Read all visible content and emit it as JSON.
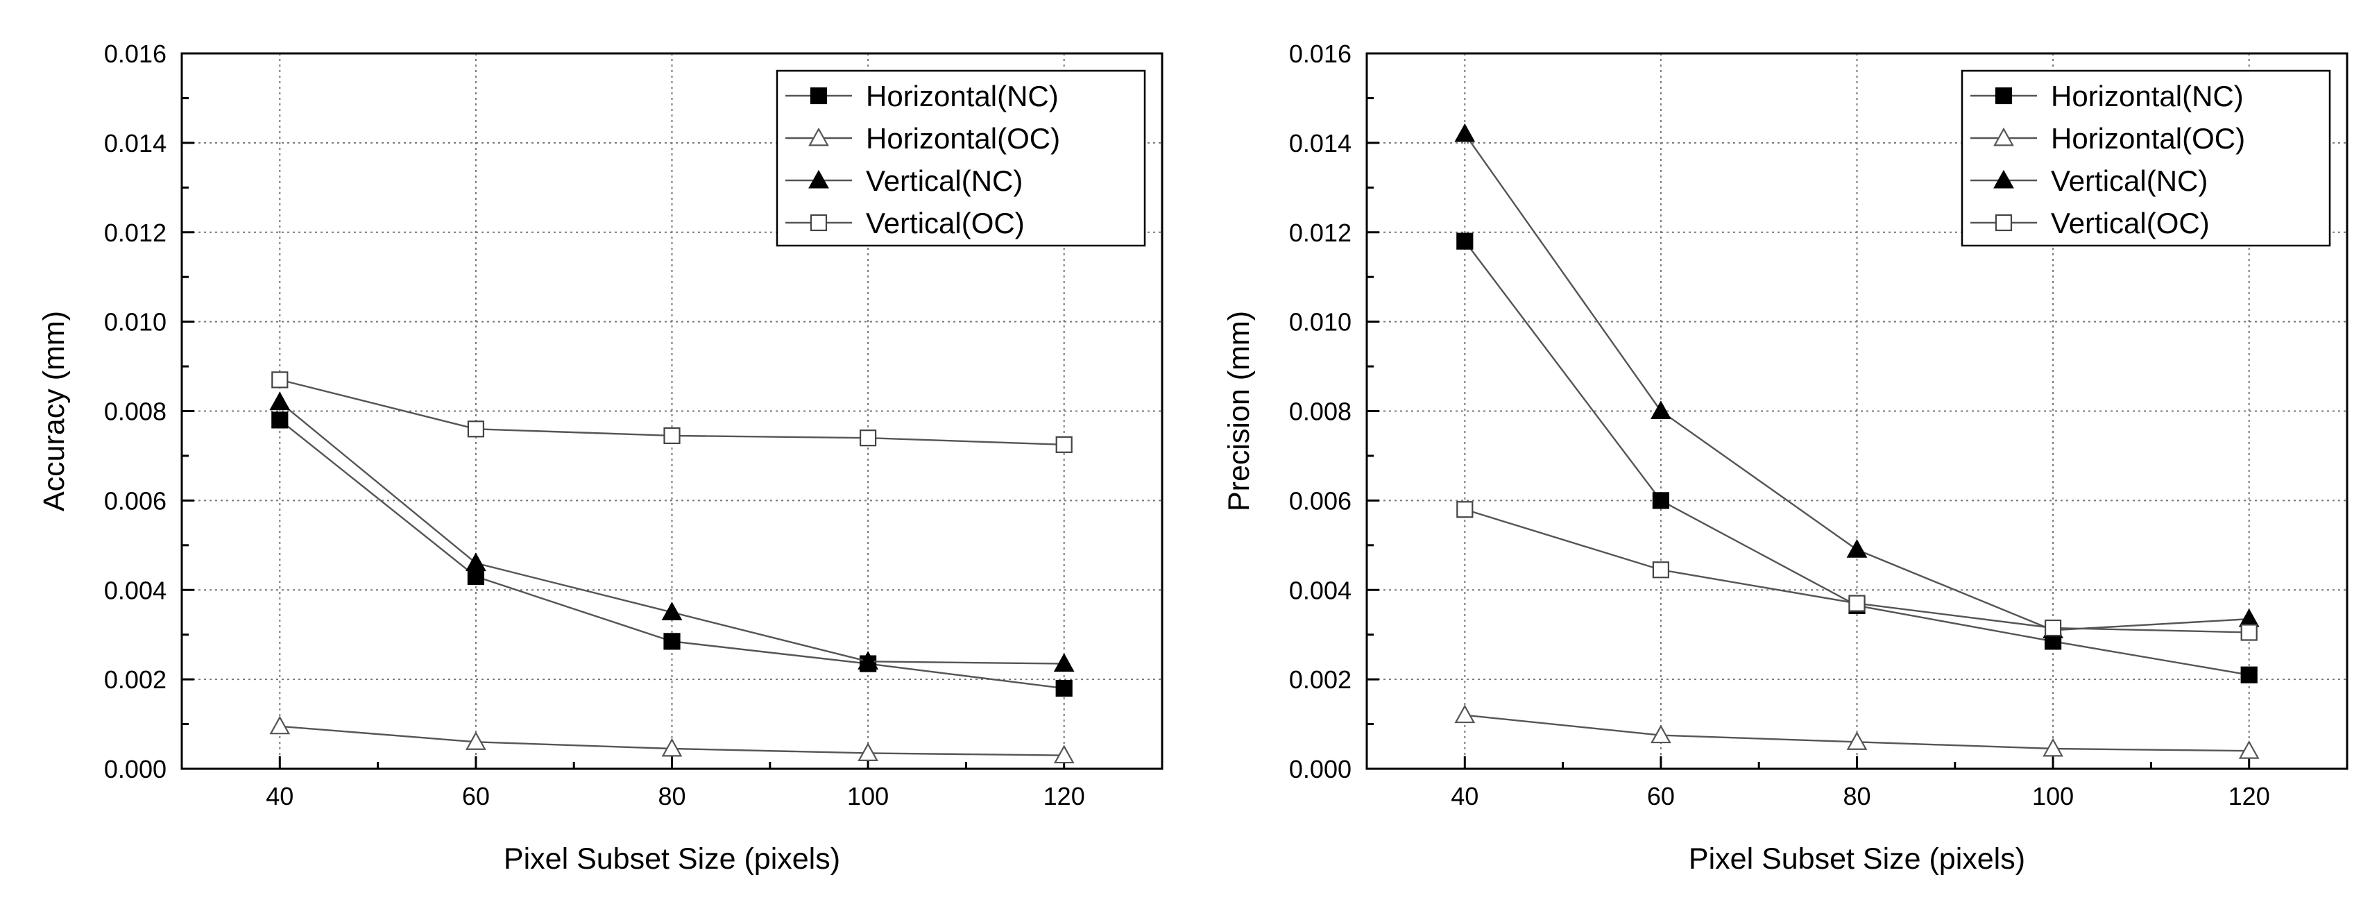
{
  "chart_data": [
    {
      "type": "line",
      "title": "",
      "xlabel": "Pixel Subset Size (pixels)",
      "ylabel": "Accuracy (mm)",
      "x": [
        40,
        60,
        80,
        100,
        120
      ],
      "xlim": [
        30,
        130
      ],
      "ylim": [
        0,
        0.016
      ],
      "xticks": [
        "40",
        "60",
        "80",
        "100",
        "120"
      ],
      "yticks": [
        "0.000",
        "0.002",
        "0.004",
        "0.006",
        "0.008",
        "0.010",
        "0.012",
        "0.014",
        "0.016"
      ],
      "grid": true,
      "legend_position": "top-right",
      "series": [
        {
          "name": "Horizontal(NC)",
          "marker": "square-filled",
          "values": [
            0.0078,
            0.0043,
            0.00285,
            0.00235,
            0.0018
          ]
        },
        {
          "name": "Horizontal(OC)",
          "marker": "triangle-open",
          "values": [
            0.00095,
            0.0006,
            0.00045,
            0.00035,
            0.0003
          ]
        },
        {
          "name": "Vertical(NC)",
          "marker": "triangle-filled",
          "values": [
            0.0082,
            0.0046,
            0.0035,
            0.0024,
            0.00235
          ]
        },
        {
          "name": "Vertical(OC)",
          "marker": "square-open",
          "values": [
            0.0087,
            0.0076,
            0.00745,
            0.0074,
            0.00725
          ]
        }
      ]
    },
    {
      "type": "line",
      "title": "",
      "xlabel": "Pixel Subset Size (pixels)",
      "ylabel": "Precision (mm)",
      "x": [
        40,
        60,
        80,
        100,
        120
      ],
      "xlim": [
        30,
        130
      ],
      "ylim": [
        0,
        0.016
      ],
      "xticks": [
        "40",
        "60",
        "80",
        "100",
        "120"
      ],
      "yticks": [
        "0.000",
        "0.002",
        "0.004",
        "0.006",
        "0.008",
        "0.010",
        "0.012",
        "0.014",
        "0.016"
      ],
      "grid": true,
      "legend_position": "top-right",
      "series": [
        {
          "name": "Horizontal(NC)",
          "marker": "square-filled",
          "values": [
            0.0118,
            0.006,
            0.00365,
            0.00285,
            0.0021
          ]
        },
        {
          "name": "Horizontal(OC)",
          "marker": "triangle-open",
          "values": [
            0.0012,
            0.00075,
            0.0006,
            0.00045,
            0.0004
          ]
        },
        {
          "name": "Vertical(NC)",
          "marker": "triangle-filled",
          "values": [
            0.0142,
            0.008,
            0.0049,
            0.0031,
            0.00335
          ]
        },
        {
          "name": "Vertical(OC)",
          "marker": "square-open",
          "values": [
            0.0058,
            0.00445,
            0.0037,
            0.00315,
            0.00305
          ]
        }
      ]
    }
  ]
}
